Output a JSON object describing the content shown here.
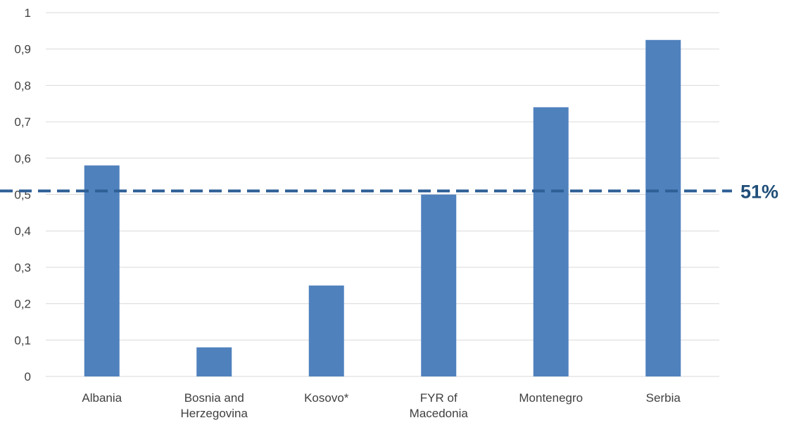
{
  "chart_data": {
    "type": "bar",
    "categories": [
      [
        "Albania"
      ],
      [
        "Bosnia and",
        "Herzegovina"
      ],
      [
        "Kosovo*"
      ],
      [
        "FYR of",
        "Macedonia"
      ],
      [
        "Montenegro"
      ],
      [
        "Serbia"
      ]
    ],
    "values": [
      0.58,
      0.08,
      0.25,
      0.5,
      0.74,
      0.925
    ],
    "ylim": [
      0,
      1
    ],
    "yticks": [
      "0",
      "0,1",
      "0,2",
      "0,3",
      "0,4",
      "0,5",
      "0,6",
      "0,7",
      "0,8",
      "0,9",
      "1"
    ],
    "grid": true,
    "reference_line": {
      "value": 0.51,
      "label": "51%",
      "style": "dashed"
    },
    "colors": {
      "bar": "#4f81bd",
      "grid": "#d9d9d9",
      "reference": "#2e5f96",
      "reference_label": "#1f4e79"
    }
  }
}
